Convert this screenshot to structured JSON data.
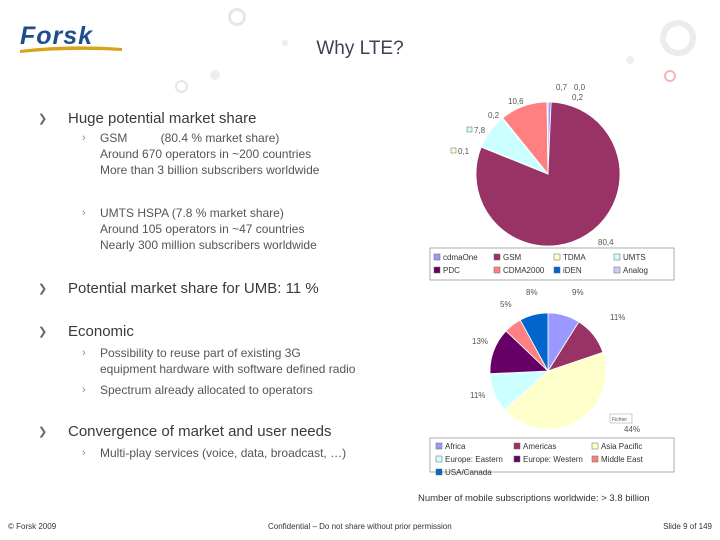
{
  "header": {
    "logo_text": "Forsk",
    "title": "Why LTE?"
  },
  "bullets": [
    {
      "text": "Huge potential market share",
      "sub": [
        {
          "lines": [
            "GSM          (80.4 % market share)",
            "Around 670 operators in ~200 countries",
            "More than 3 billion subscribers worldwide"
          ]
        },
        {
          "lines": [
            "UMTS HSPA (7.8 % market share)",
            "Around 105 operators in ~47 countries",
            "Nearly 300 million subscribers worldwide"
          ]
        }
      ]
    },
    {
      "text": "Potential market share for UMB: 11 %",
      "sub": []
    },
    {
      "text": "Economic",
      "sub": [
        {
          "lines": [
            "Possibility to reuse part of existing 3G",
            "equipment hardware with software defined radio"
          ]
        },
        {
          "lines": [
            "Spectrum already allocated to operators"
          ]
        }
      ]
    },
    {
      "text": "Convergence of market and user needs",
      "sub": [
        {
          "lines": [
            "Multi-play services (voice, data, broadcast, …)"
          ]
        }
      ]
    }
  ],
  "caption": "Number of mobile subscriptions worldwide: > 3.8 billion",
  "footer": {
    "left": "© Forsk 2009",
    "center": "Confidential – Do not share without prior permission",
    "right": "Slide 9 of 149"
  },
  "chart_data": [
    {
      "type": "pie",
      "categories": [
        "cdmaOne",
        "GSM",
        "TDMA",
        "UMTS",
        "PDC",
        "CDMA2000",
        "iDEN",
        "Analog"
      ],
      "values": [
        0.7,
        80.4,
        0.1,
        7.8,
        0.2,
        10.6,
        0.2,
        0.0
      ],
      "data_labels": [
        "0,7",
        "80,4",
        "0,1",
        "7,8",
        "0,2",
        "10,6",
        "0,2",
        "0,0"
      ],
      "colors": [
        "#9999ff",
        "#993366",
        "#ffffcc",
        "#ccffff",
        "#660066",
        "#ff8080",
        "#0066cc",
        "#ccccff"
      ],
      "legend": "bottom"
    },
    {
      "type": "pie",
      "categories": [
        "Africa",
        "Americas",
        "Asia Pacific",
        "Europe: Eastern",
        "Europe: Western",
        "Middle East",
        "USA/Canada"
      ],
      "values": [
        9,
        11,
        44,
        11,
        13,
        5,
        8
      ],
      "data_labels": [
        "9%",
        "11%",
        "44%",
        "11%",
        "13%",
        "5%",
        "8%"
      ],
      "colors": [
        "#9999ff",
        "#993366",
        "#ffffcc",
        "#ccffff",
        "#660066",
        "#ff8080",
        "#0066cc"
      ],
      "legend": "bottom",
      "annotation": "Fichier"
    }
  ]
}
